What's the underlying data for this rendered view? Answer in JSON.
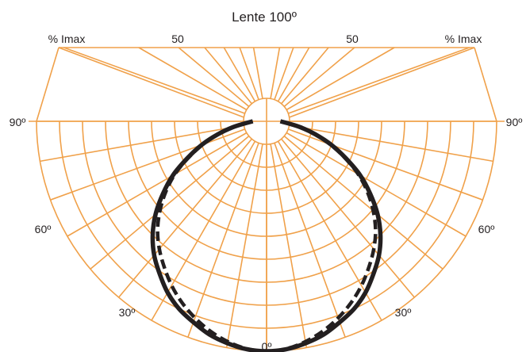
{
  "chart_data": {
    "type": "polar-candela",
    "title": "Lente 100º",
    "angle_labels": {
      "left_90": "90º",
      "right_90": "90º",
      "left_60": "60º",
      "right_60": "60º",
      "left_30": "30º",
      "right_30": "30º",
      "bottom_0": "0º"
    },
    "top_labels": {
      "left_unit": "% Imax",
      "left_mid": "50",
      "right_mid": "50",
      "right_unit": "% Imax"
    },
    "radial_max": 100,
    "radial_rings": 10,
    "angular_step_deg": 10,
    "angle_range_deg": [
      -90,
      90
    ],
    "grid_color": "#f0a14a",
    "curve_color": "#231f20",
    "series": [
      {
        "style": "solid",
        "angles": [
          0,
          5,
          10,
          15,
          20,
          25,
          30,
          35,
          40,
          45,
          50,
          55,
          60,
          65,
          70,
          75,
          80,
          85,
          90
        ],
        "values": [
          100,
          99.5,
          98,
          96,
          93,
          90,
          86,
          81,
          76,
          70,
          63,
          55,
          47,
          38,
          30,
          22,
          15,
          9,
          6
        ]
      },
      {
        "style": "dashed",
        "angles": [
          0,
          5,
          10,
          15,
          20,
          25,
          30,
          35,
          40,
          45,
          50,
          55,
          60,
          65,
          70,
          75,
          80,
          85,
          90
        ],
        "values": [
          100,
          99.3,
          97.3,
          94.5,
          91,
          87,
          82.5,
          77.5,
          72.5,
          67,
          60.5,
          53.5,
          46,
          37.5,
          29.5,
          22,
          15,
          9,
          6
        ]
      }
    ]
  }
}
